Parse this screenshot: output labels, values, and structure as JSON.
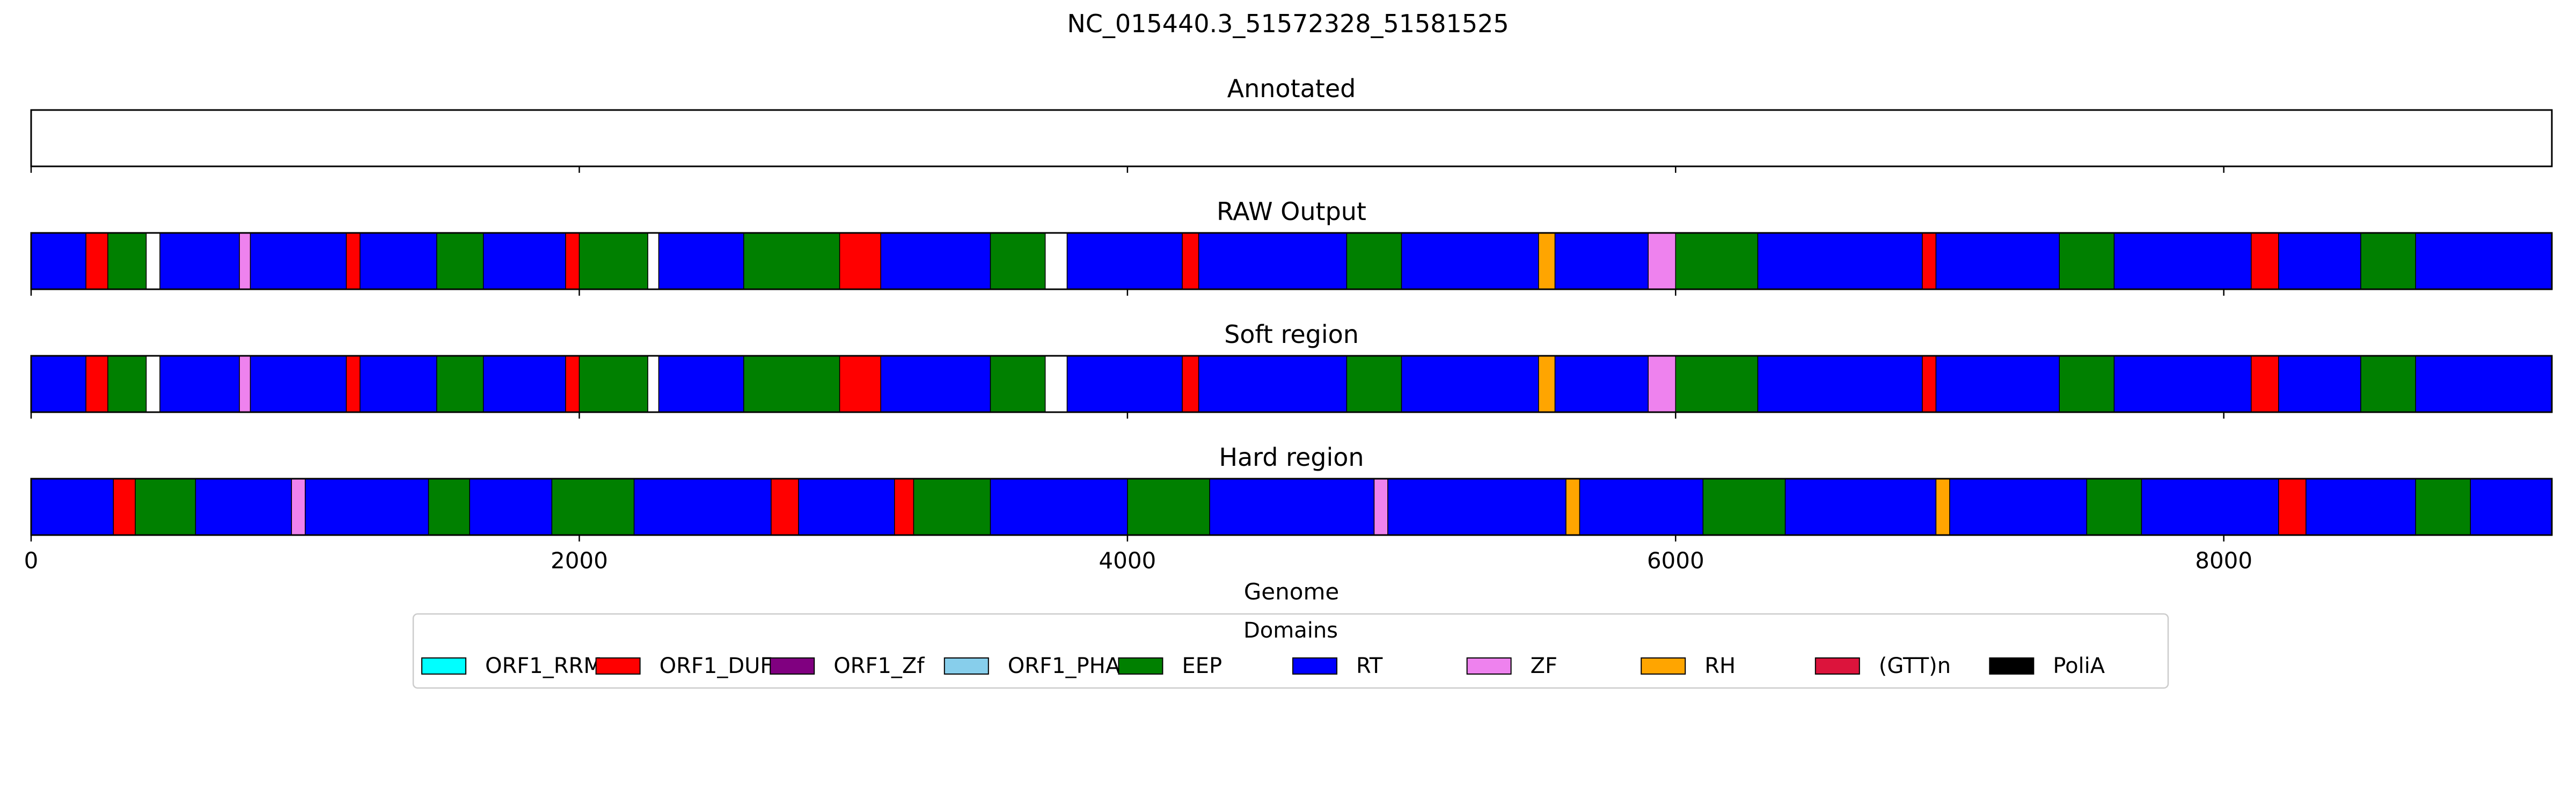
{
  "figure_title": "NC_015440.3_51572328_51581525",
  "colors": {
    "ORF1_RRM": "#00ffff",
    "ORF1_DUF": "#ff0000",
    "ORF1_Zf": "#800080",
    "ORF1_PHA": "#87ceeb",
    "EEP": "#008000",
    "RT": "#0000ff",
    "ZF": "#ee82ee",
    "RH": "#ffa500",
    "(GTT)n": "#dc143c",
    "PoliA": "#000000",
    "empty": "#ffffff"
  },
  "chart_data": {
    "type": "genome-track",
    "xlabel": "Genome",
    "xlim": [
      0,
      9197
    ],
    "xticks": [
      0,
      2000,
      4000,
      6000,
      8000
    ],
    "xtick_labels": [
      "0",
      "2000",
      "4000",
      "6000",
      "8000"
    ],
    "tracks": [
      {
        "title": "Annotated",
        "segments": []
      },
      {
        "title": "RAW Output",
        "segments": [
          [
            "RT",
            0,
            200
          ],
          [
            "ORF1_DUF",
            200,
            280
          ],
          [
            "EEP",
            280,
            420
          ],
          [
            "empty",
            420,
            470
          ],
          [
            "RT",
            470,
            760
          ],
          [
            "ZF",
            760,
            800
          ],
          [
            "RT",
            800,
            1150
          ],
          [
            "ORF1_DUF",
            1150,
            1200
          ],
          [
            "RT",
            1200,
            1480
          ],
          [
            "EEP",
            1480,
            1650
          ],
          [
            "RT",
            1650,
            1950
          ],
          [
            "ORF1_DUF",
            1950,
            2000
          ],
          [
            "EEP",
            2000,
            2250
          ],
          [
            "empty",
            2250,
            2290
          ],
          [
            "RT",
            2290,
            2600
          ],
          [
            "EEP",
            2600,
            2950
          ],
          [
            "ORF1_DUF",
            2950,
            3100
          ],
          [
            "RT",
            3100,
            3500
          ],
          [
            "EEP",
            3500,
            3700
          ],
          [
            "empty",
            3700,
            3780
          ],
          [
            "RT",
            3780,
            4200
          ],
          [
            "ORF1_DUF",
            4200,
            4260
          ],
          [
            "RT",
            4260,
            4800
          ],
          [
            "EEP",
            4800,
            5000
          ],
          [
            "RT",
            5000,
            5500
          ],
          [
            "RH",
            5500,
            5560
          ],
          [
            "RT",
            5560,
            5900
          ],
          [
            "ZF",
            5900,
            6000
          ],
          [
            "EEP",
            6000,
            6300
          ],
          [
            "RT",
            6300,
            6900
          ],
          [
            "ORF1_DUF",
            6900,
            6950
          ],
          [
            "RT",
            6950,
            7400
          ],
          [
            "EEP",
            7400,
            7600
          ],
          [
            "RT",
            7600,
            8100
          ],
          [
            "ORF1_DUF",
            8100,
            8200
          ],
          [
            "RT",
            8200,
            8500
          ],
          [
            "EEP",
            8500,
            8700
          ],
          [
            "RT",
            8700,
            9197
          ]
        ]
      },
      {
        "title": "Soft region",
        "segments": [
          [
            "RT",
            0,
            200
          ],
          [
            "ORF1_DUF",
            200,
            280
          ],
          [
            "EEP",
            280,
            420
          ],
          [
            "empty",
            420,
            470
          ],
          [
            "RT",
            470,
            760
          ],
          [
            "ZF",
            760,
            800
          ],
          [
            "RT",
            800,
            1150
          ],
          [
            "ORF1_DUF",
            1150,
            1200
          ],
          [
            "RT",
            1200,
            1480
          ],
          [
            "EEP",
            1480,
            1650
          ],
          [
            "RT",
            1650,
            1950
          ],
          [
            "ORF1_DUF",
            1950,
            2000
          ],
          [
            "EEP",
            2000,
            2250
          ],
          [
            "empty",
            2250,
            2290
          ],
          [
            "RT",
            2290,
            2600
          ],
          [
            "EEP",
            2600,
            2950
          ],
          [
            "ORF1_DUF",
            2950,
            3100
          ],
          [
            "RT",
            3100,
            3500
          ],
          [
            "EEP",
            3500,
            3700
          ],
          [
            "empty",
            3700,
            3780
          ],
          [
            "RT",
            3780,
            4200
          ],
          [
            "ORF1_DUF",
            4200,
            4260
          ],
          [
            "RT",
            4260,
            4800
          ],
          [
            "EEP",
            4800,
            5000
          ],
          [
            "RT",
            5000,
            5500
          ],
          [
            "RH",
            5500,
            5560
          ],
          [
            "RT",
            5560,
            5900
          ],
          [
            "ZF",
            5900,
            6000
          ],
          [
            "EEP",
            6000,
            6300
          ],
          [
            "RT",
            6300,
            6900
          ],
          [
            "ORF1_DUF",
            6900,
            6950
          ],
          [
            "RT",
            6950,
            7400
          ],
          [
            "EEP",
            7400,
            7600
          ],
          [
            "RT",
            7600,
            8100
          ],
          [
            "ORF1_DUF",
            8100,
            8200
          ],
          [
            "RT",
            8200,
            8500
          ],
          [
            "EEP",
            8500,
            8700
          ],
          [
            "RT",
            8700,
            9197
          ]
        ]
      },
      {
        "title": "Hard region",
        "segments": [
          [
            "RT",
            0,
            300
          ],
          [
            "ORF1_DUF",
            300,
            380
          ],
          [
            "EEP",
            380,
            600
          ],
          [
            "RT",
            600,
            950
          ],
          [
            "ZF",
            950,
            1000
          ],
          [
            "RT",
            1000,
            1450
          ],
          [
            "EEP",
            1450,
            1600
          ],
          [
            "RT",
            1600,
            1900
          ],
          [
            "EEP",
            1900,
            2200
          ],
          [
            "RT",
            2200,
            2700
          ],
          [
            "ORF1_DUF",
            2700,
            2800
          ],
          [
            "RT",
            2800,
            3150
          ],
          [
            "ORF1_DUF",
            3150,
            3220
          ],
          [
            "EEP",
            3220,
            3500
          ],
          [
            "RT",
            3500,
            4000
          ],
          [
            "EEP",
            4000,
            4300
          ],
          [
            "RT",
            4300,
            4900
          ],
          [
            "ZF",
            4900,
            4950
          ],
          [
            "RT",
            4950,
            5600
          ],
          [
            "RH",
            5600,
            5650
          ],
          [
            "RT",
            5650,
            6100
          ],
          [
            "EEP",
            6100,
            6400
          ],
          [
            "RT",
            6400,
            6950
          ],
          [
            "RH",
            6950,
            7000
          ],
          [
            "RT",
            7000,
            7500
          ],
          [
            "EEP",
            7500,
            7700
          ],
          [
            "RT",
            7700,
            8200
          ],
          [
            "ORF1_DUF",
            8200,
            8300
          ],
          [
            "RT",
            8300,
            8700
          ],
          [
            "EEP",
            8700,
            8900
          ],
          [
            "RT",
            8900,
            9197
          ]
        ]
      }
    ],
    "legend": {
      "title": "Domains",
      "placement": "bottom-center",
      "entries": [
        "ORF1_RRM",
        "ORF1_DUF",
        "ORF1_Zf",
        "ORF1_PHA",
        "EEP",
        "RT",
        "ZF",
        "RH",
        "(GTT)n",
        "PoliA"
      ]
    }
  }
}
